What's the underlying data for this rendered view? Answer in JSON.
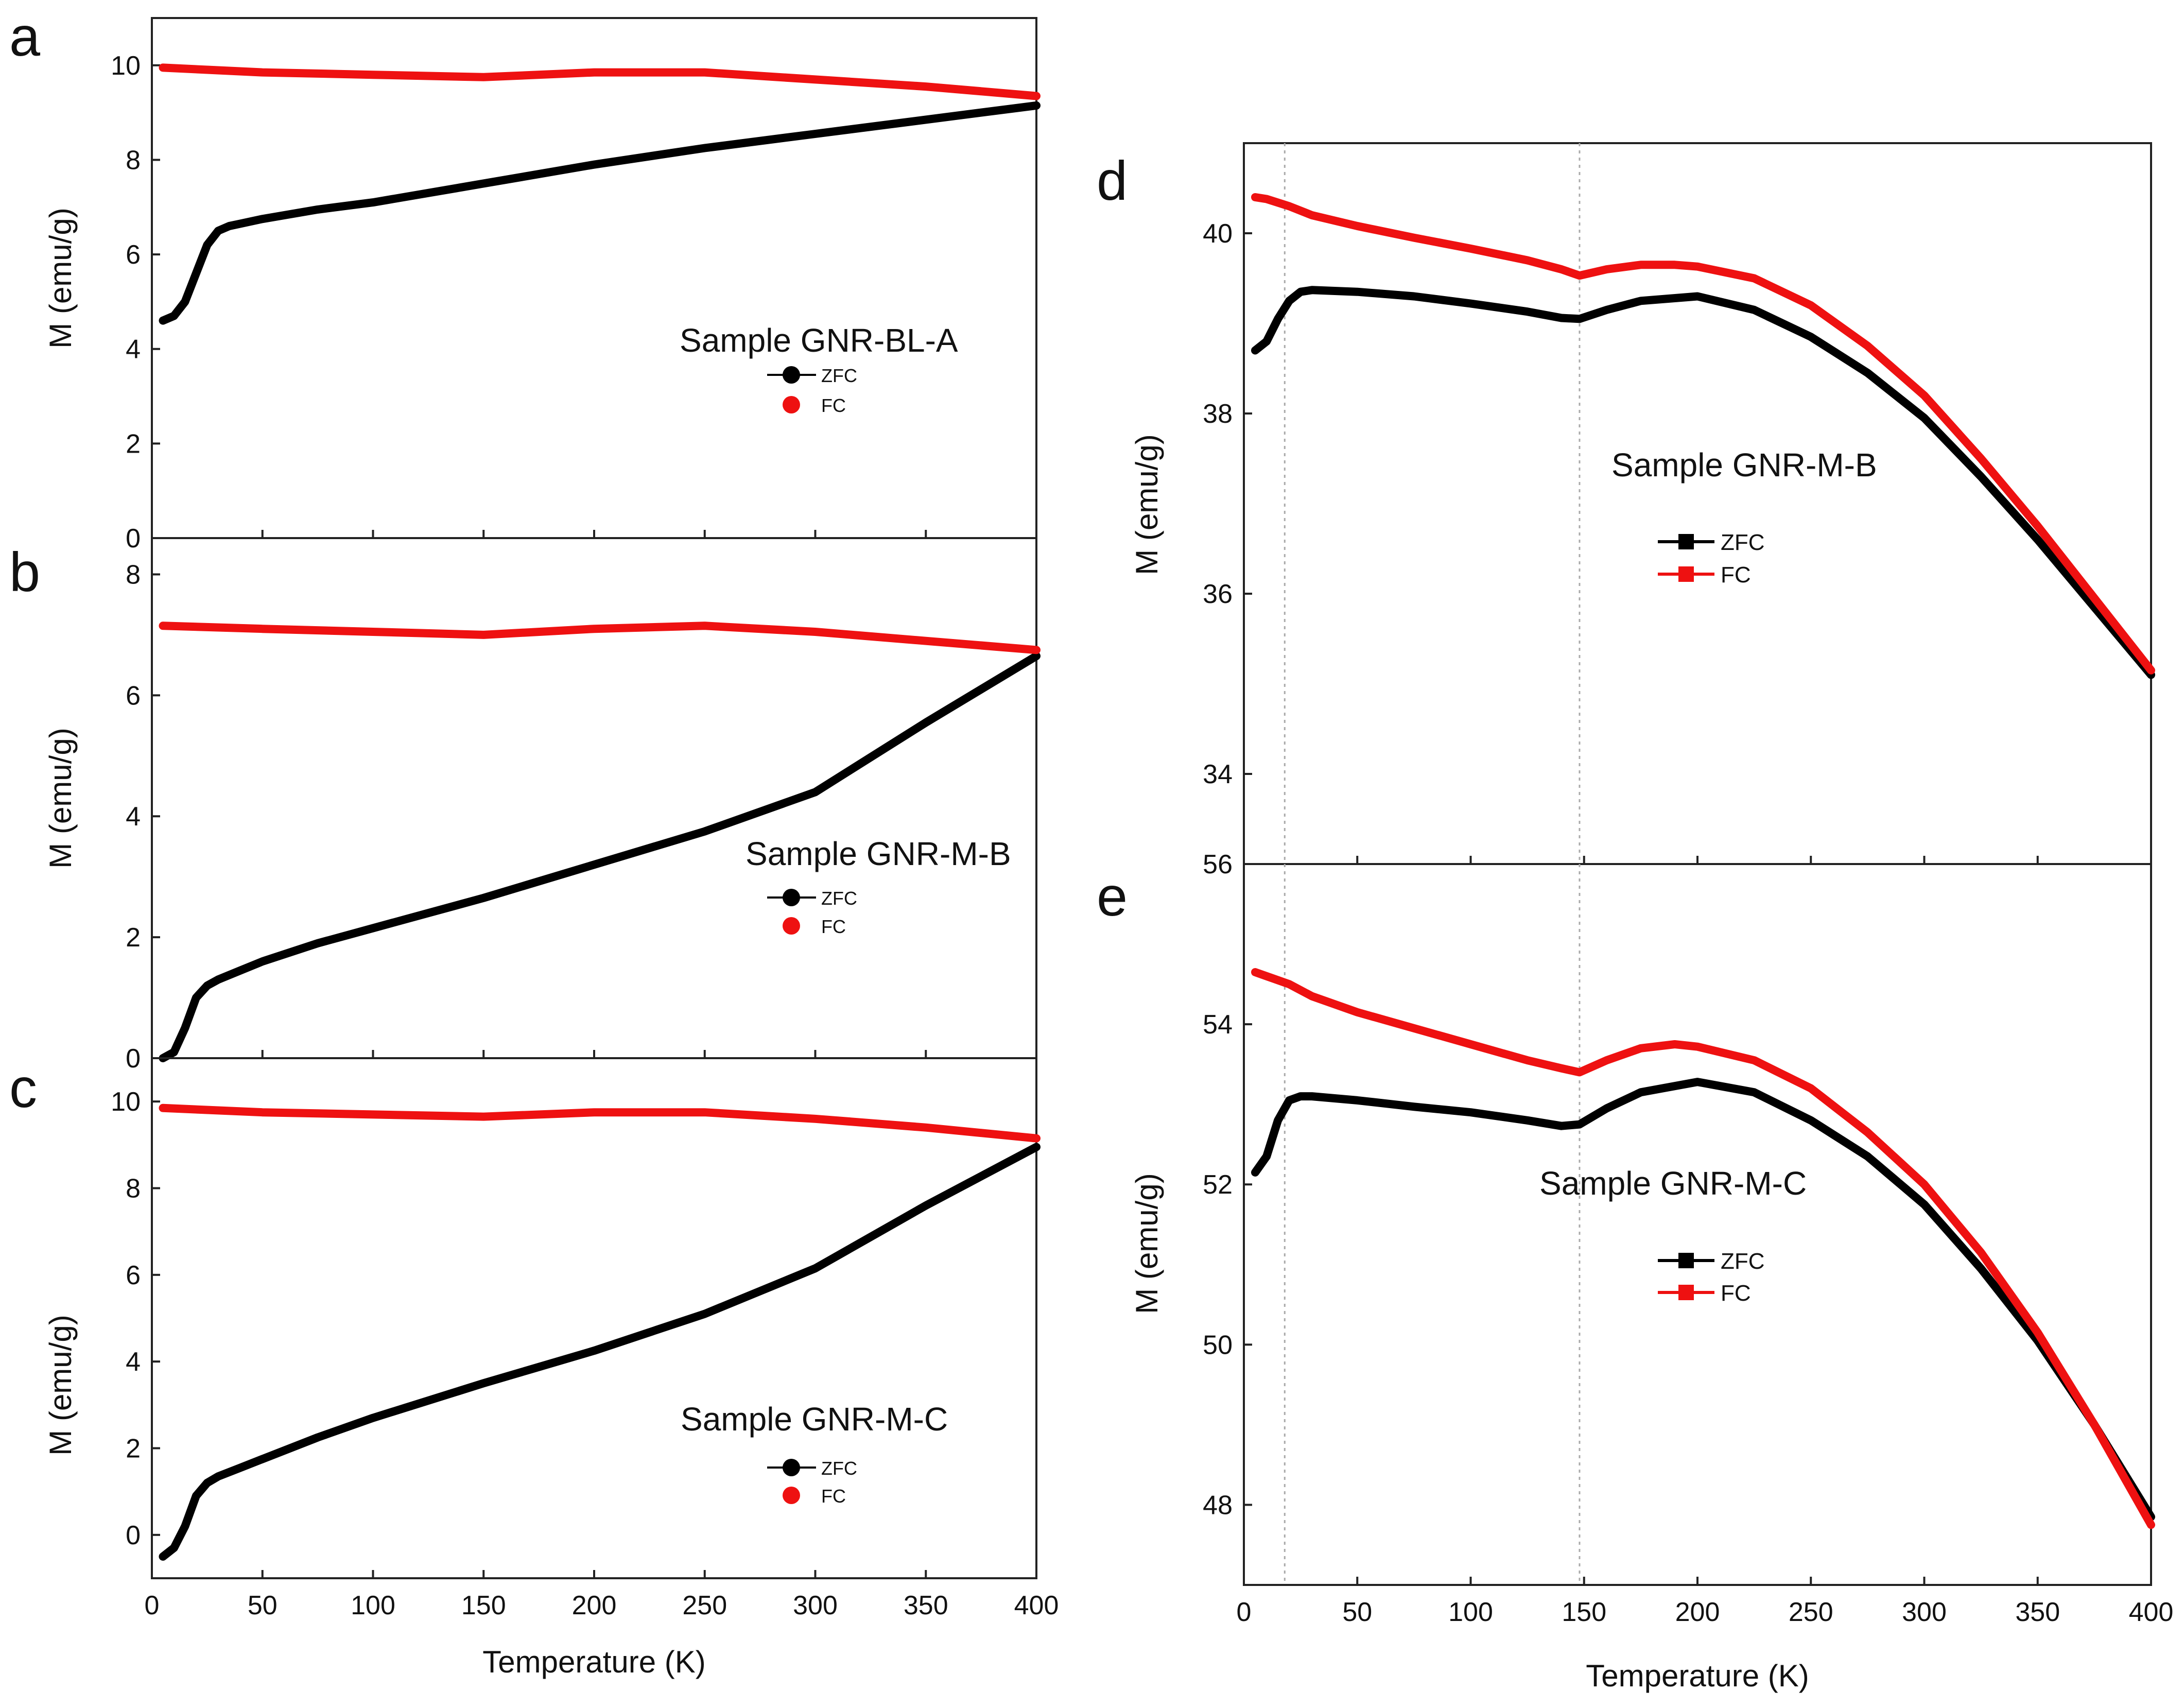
{
  "chart_data": [
    {
      "id": "a",
      "type": "line",
      "panel_letter": "a",
      "title": "",
      "xlabel": "",
      "ylabel": "M (emu/g)",
      "xlim": [
        0,
        400
      ],
      "ylim": [
        0,
        11
      ],
      "xticks": [
        0,
        50,
        100,
        150,
        200,
        250,
        300,
        350,
        400
      ],
      "yticks": [
        0,
        2,
        4,
        6,
        8,
        10
      ],
      "annotation": "Sample GNR-BL-A",
      "legend_marker": "circle",
      "series": [
        {
          "name": "ZFC",
          "color": "#000000",
          "x": [
            5,
            10,
            15,
            20,
            25,
            30,
            35,
            40,
            50,
            75,
            100,
            150,
            200,
            250,
            300,
            350,
            400
          ],
          "y": [
            4.6,
            4.7,
            5.0,
            5.6,
            6.2,
            6.5,
            6.6,
            6.65,
            6.75,
            6.95,
            7.1,
            7.5,
            7.9,
            8.25,
            8.55,
            8.85,
            9.15
          ]
        },
        {
          "name": "FC",
          "color": "#ee1111",
          "x": [
            5,
            50,
            100,
            150,
            200,
            250,
            300,
            350,
            400
          ],
          "y": [
            9.95,
            9.85,
            9.8,
            9.75,
            9.85,
            9.85,
            9.7,
            9.55,
            9.35
          ]
        }
      ]
    },
    {
      "id": "b",
      "type": "line",
      "panel_letter": "b",
      "title": "",
      "xlabel": "",
      "ylabel": "M (emu/g)",
      "xlim": [
        0,
        400
      ],
      "ylim": [
        0,
        8.6
      ],
      "xticks": [
        0,
        50,
        100,
        150,
        200,
        250,
        300,
        350,
        400
      ],
      "yticks": [
        0,
        2,
        4,
        6,
        8
      ],
      "annotation": "Sample GNR-M-B",
      "legend_marker": "circle",
      "series": [
        {
          "name": "ZFC",
          "color": "#000000",
          "x": [
            5,
            10,
            15,
            20,
            25,
            30,
            40,
            50,
            75,
            100,
            150,
            200,
            250,
            300,
            350,
            400
          ],
          "y": [
            0.0,
            0.1,
            0.5,
            1.0,
            1.2,
            1.3,
            1.45,
            1.6,
            1.9,
            2.15,
            2.65,
            3.2,
            3.75,
            4.4,
            5.55,
            6.65
          ]
        },
        {
          "name": "FC",
          "color": "#ee1111",
          "x": [
            5,
            50,
            100,
            150,
            200,
            250,
            300,
            350,
            400
          ],
          "y": [
            7.15,
            7.1,
            7.05,
            7.0,
            7.1,
            7.15,
            7.05,
            6.9,
            6.75
          ]
        }
      ]
    },
    {
      "id": "c",
      "type": "line",
      "panel_letter": "c",
      "title": "",
      "xlabel": "Temperature (K)",
      "ylabel": "M (emu/g)",
      "xlim": [
        0,
        400
      ],
      "ylim": [
        -1,
        11
      ],
      "xticks": [
        0,
        50,
        100,
        150,
        200,
        250,
        300,
        350,
        400
      ],
      "yticks": [
        0,
        2,
        4,
        6,
        8,
        10
      ],
      "annotation": "Sample GNR-M-C",
      "legend_marker": "circle",
      "series": [
        {
          "name": "ZFC",
          "color": "#000000",
          "x": [
            5,
            10,
            15,
            20,
            25,
            30,
            40,
            50,
            75,
            100,
            150,
            200,
            250,
            300,
            350,
            400
          ],
          "y": [
            -0.5,
            -0.3,
            0.2,
            0.9,
            1.2,
            1.35,
            1.55,
            1.75,
            2.25,
            2.7,
            3.5,
            4.25,
            5.1,
            6.15,
            7.6,
            8.95
          ]
        },
        {
          "name": "FC",
          "color": "#ee1111",
          "x": [
            5,
            50,
            100,
            150,
            200,
            250,
            300,
            350,
            400
          ],
          "y": [
            9.85,
            9.75,
            9.7,
            9.65,
            9.75,
            9.75,
            9.6,
            9.4,
            9.15
          ]
        }
      ]
    },
    {
      "id": "d",
      "type": "line",
      "panel_letter": "d",
      "title": "",
      "xlabel": "",
      "ylabel": "M (emu/g)",
      "xlim": [
        0,
        400
      ],
      "ylim": [
        33.0,
        41.0
      ],
      "xticks": [
        0,
        50,
        100,
        150,
        200,
        250,
        300,
        350,
        400
      ],
      "yticks": [
        34,
        36,
        38,
        40
      ],
      "annotation": "Sample GNR-M-B",
      "legend_marker": "square",
      "reference_lines_x": [
        18,
        148
      ],
      "series": [
        {
          "name": "ZFC",
          "color": "#000000",
          "x": [
            5,
            10,
            15,
            20,
            25,
            30,
            50,
            75,
            100,
            125,
            140,
            148,
            160,
            175,
            200,
            225,
            250,
            275,
            300,
            325,
            350,
            375,
            400
          ],
          "y": [
            38.7,
            38.8,
            39.05,
            39.25,
            39.35,
            39.37,
            39.35,
            39.3,
            39.22,
            39.13,
            39.06,
            39.05,
            39.15,
            39.25,
            39.3,
            39.15,
            38.85,
            38.45,
            37.95,
            37.3,
            36.6,
            35.85,
            35.1
          ]
        },
        {
          "name": "FC",
          "color": "#ee1111",
          "x": [
            5,
            10,
            20,
            30,
            50,
            75,
            100,
            125,
            140,
            148,
            160,
            175,
            190,
            200,
            225,
            250,
            275,
            300,
            325,
            350,
            375,
            400
          ],
          "y": [
            40.4,
            40.38,
            40.3,
            40.2,
            40.08,
            39.95,
            39.83,
            39.7,
            39.6,
            39.53,
            39.6,
            39.65,
            39.65,
            39.63,
            39.5,
            39.2,
            38.75,
            38.2,
            37.5,
            36.75,
            35.95,
            35.15
          ]
        }
      ]
    },
    {
      "id": "e",
      "type": "line",
      "panel_letter": "e",
      "title": "",
      "xlabel": "Temperature (K)",
      "ylabel": "M (emu/g)",
      "xlim": [
        0,
        400
      ],
      "ylim": [
        47.0,
        56.0
      ],
      "xticks": [
        0,
        50,
        100,
        150,
        200,
        250,
        300,
        350,
        400
      ],
      "yticks": [
        48,
        50,
        52,
        54,
        56
      ],
      "annotation": "Sample GNR-M-C",
      "legend_marker": "square",
      "reference_lines_x": [
        18,
        148
      ],
      "series": [
        {
          "name": "ZFC",
          "color": "#000000",
          "x": [
            5,
            10,
            15,
            20,
            25,
            30,
            50,
            75,
            100,
            125,
            140,
            148,
            160,
            175,
            200,
            225,
            250,
            275,
            300,
            325,
            350,
            375,
            400
          ],
          "y": [
            52.15,
            52.35,
            52.8,
            53.05,
            53.1,
            53.1,
            53.05,
            52.97,
            52.9,
            52.8,
            52.73,
            52.75,
            52.95,
            53.15,
            53.28,
            53.15,
            52.8,
            52.35,
            51.75,
            50.95,
            50.05,
            49.0,
            47.85
          ]
        },
        {
          "name": "FC",
          "color": "#ee1111",
          "x": [
            5,
            10,
            20,
            30,
            50,
            75,
            100,
            125,
            140,
            148,
            160,
            175,
            190,
            200,
            225,
            250,
            275,
            300,
            325,
            350,
            375,
            400
          ],
          "y": [
            54.65,
            54.6,
            54.5,
            54.35,
            54.15,
            53.95,
            53.75,
            53.55,
            53.45,
            53.4,
            53.55,
            53.7,
            53.75,
            53.72,
            53.55,
            53.2,
            52.65,
            52.0,
            51.15,
            50.15,
            49.0,
            47.75
          ]
        }
      ]
    }
  ]
}
